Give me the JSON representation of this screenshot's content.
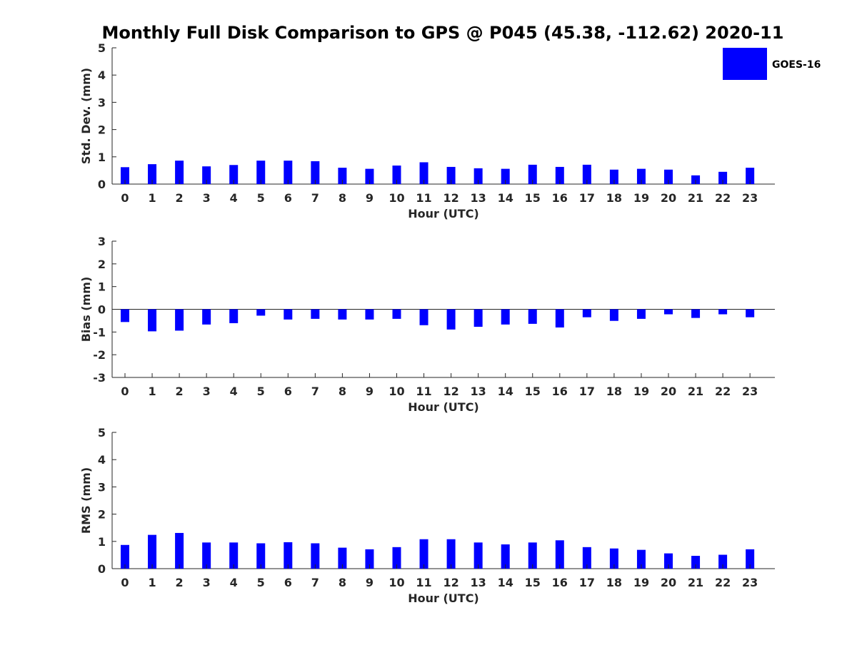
{
  "chart_data": {
    "title": "Monthly Full Disk Comparison to GPS @ P045 (45.38, -112.62) 2020-11",
    "legend": {
      "label": "GOES-16",
      "placement": "top-right",
      "color": "#0000ff"
    },
    "categories": [
      "0",
      "1",
      "2",
      "3",
      "4",
      "5",
      "6",
      "7",
      "8",
      "9",
      "10",
      "11",
      "12",
      "13",
      "14",
      "15",
      "16",
      "17",
      "18",
      "19",
      "20",
      "21",
      "22",
      "23"
    ],
    "charts": [
      {
        "type": "bar",
        "xlabel": "Hour (UTC)",
        "ylabel": "Std. Dev. (mm)",
        "ylim": [
          0,
          5
        ],
        "yticks": [
          "0",
          "1",
          "2",
          "3",
          "4",
          "5"
        ],
        "series": [
          {
            "name": "GOES-16",
            "values": [
              0.62,
              0.73,
              0.86,
              0.65,
              0.7,
              0.86,
              0.86,
              0.84,
              0.6,
              0.56,
              0.68,
              0.8,
              0.63,
              0.58,
              0.56,
              0.71,
              0.63,
              0.71,
              0.53,
              0.56,
              0.53,
              0.32,
              0.45,
              0.6
            ]
          }
        ]
      },
      {
        "type": "bar",
        "xlabel": "Hour (UTC)",
        "ylabel": "Bias (mm)",
        "ylim": [
          -3,
          3
        ],
        "yticks": [
          "-3",
          "-2",
          "-1",
          "0",
          "1",
          "2",
          "3"
        ],
        "series": [
          {
            "name": "GOES-16",
            "values": [
              -0.56,
              -0.97,
              -0.94,
              -0.67,
              -0.61,
              -0.28,
              -0.45,
              -0.42,
              -0.45,
              -0.45,
              -0.42,
              -0.7,
              -0.89,
              -0.77,
              -0.67,
              -0.64,
              -0.8,
              -0.35,
              -0.51,
              -0.42,
              -0.22,
              -0.38,
              -0.22,
              -0.35
            ]
          }
        ]
      },
      {
        "type": "bar",
        "xlabel": "Hour (UTC)",
        "ylabel": "RMS (mm)",
        "ylim": [
          0,
          5
        ],
        "yticks": [
          "0",
          "1",
          "2",
          "3",
          "4",
          "5"
        ],
        "series": [
          {
            "name": "GOES-16",
            "values": [
              0.87,
              1.24,
              1.31,
              0.96,
              0.96,
              0.93,
              0.97,
              0.93,
              0.77,
              0.71,
              0.79,
              1.08,
              1.08,
              0.96,
              0.89,
              0.96,
              1.04,
              0.79,
              0.74,
              0.69,
              0.56,
              0.47,
              0.51,
              0.71
            ]
          }
        ]
      }
    ]
  }
}
